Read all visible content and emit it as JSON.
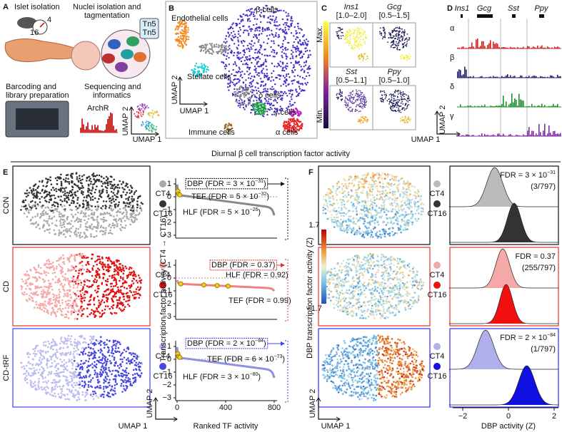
{
  "panel_a": {
    "label": "A",
    "step1": "Islet isolation",
    "step2": [
      "Nuclei isolation and",
      "tagmentation"
    ],
    "tn5": [
      "Tn5",
      "Tn5"
    ],
    "mouse_ages": [
      "16",
      "4"
    ],
    "step3": [
      "Barcoding and",
      "library preparation"
    ],
    "step4": [
      "Sequencing and",
      "informatics"
    ],
    "track": "ArchR",
    "umap_y": "UMAP 2",
    "umap_x": "UMAP 1"
  },
  "panel_b": {
    "label": "B",
    "clusters": [
      "Endothelial cells",
      "β cells",
      "Stellate cells",
      "δ cells",
      "γ cells",
      "α cells",
      "Immune cells"
    ],
    "umap_y": "UMAP 2",
    "umap_x": "UMAP 1"
  },
  "panel_c": {
    "label": "C",
    "genes": [
      {
        "name": "Ins1",
        "range": "[1.0–2.0]"
      },
      {
        "name": "Gcg",
        "range": "[0.5–1.5]"
      },
      {
        "name": "Sst",
        "range": "[0.5–1.1]"
      },
      {
        "name": "Ppy",
        "range": "[0.5–1.0]"
      }
    ],
    "scale_max": "Max.",
    "scale_min": "Min.",
    "umap_y": "UMAP 2",
    "umap_x": "UMAP 1"
  },
  "panel_d": {
    "label": "D",
    "genes": [
      "Ins1",
      "Gcg",
      "Sst",
      "Ppy"
    ],
    "cells": [
      "α",
      "β",
      "δ",
      "γ"
    ]
  },
  "title": "Diurnal β cell transcription factor activity",
  "panel_e": {
    "label": "E",
    "conditions": [
      "CON",
      "CD",
      "CD-tRF"
    ],
    "legend": [
      "CT4",
      "CT16"
    ],
    "y_label": "Transcription factor activity (CT4 → CT16)",
    "x_label": "Ranked TF activity",
    "xticks": [
      "0",
      "400",
      "800"
    ],
    "yticks": [
      "1",
      "0",
      "−1",
      "−2",
      "−3"
    ],
    "umap_y": "UMAP 2",
    "umap_x": "UMAP 1",
    "annotations": [
      [
        {
          "pre": "DBP (FDR = 3 × 10",
          "exp": "−31",
          "post": ")"
        },
        {
          "pre": "TEF (FDR = 5 × 10",
          "exp": "−32",
          "post": ")"
        },
        {
          "pre": "HLF (FDR = 5 × 10",
          "exp": "−26",
          "post": ")"
        }
      ],
      [
        {
          "pre": "DBP (FDR = 0.37)"
        },
        {
          "pre": "HLF (FDR = 0.92)"
        },
        {
          "pre": "TEF (FDR = 0.99)"
        }
      ],
      [
        {
          "pre": "DBP (FDR = 2 × 10",
          "exp": "−84",
          "post": ")"
        },
        {
          "pre": "TEF (FDR = 6 × 10",
          "exp": "−73",
          "post": ")"
        },
        {
          "pre": "HLF (FDR = 3 × 10",
          "exp": "−80",
          "post": ")"
        }
      ]
    ]
  },
  "panel_f": {
    "label": "F",
    "colorbar": [
      "1.7",
      "−1.7"
    ],
    "colorbar_label": "DBP transcription factor activity (Z)",
    "umap_y": "UMAP 2",
    "umap_x": "UMAP 1",
    "legend": [
      "CT4",
      "CT16"
    ],
    "stats": [
      {
        "pre": "FDR = 3 × 10",
        "exp": "−31",
        "count": "(3/797)"
      },
      {
        "pre": "FDR = 0.37",
        "count": "(255/797)"
      },
      {
        "pre": "FDR = 2 × 10",
        "exp": "−84",
        "count": "(1/797)"
      }
    ],
    "xticks": [
      "−2",
      "0",
      "2"
    ],
    "x_label": "DBP activity (Z)"
  }
}
